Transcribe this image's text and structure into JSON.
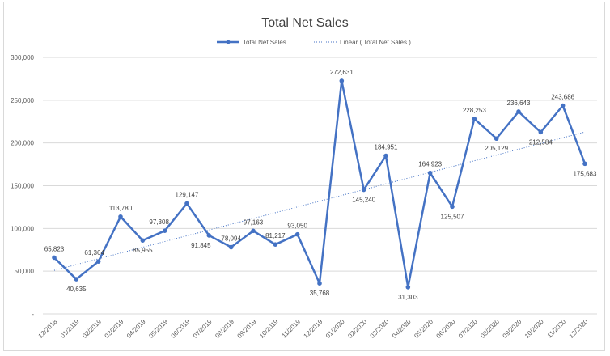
{
  "chart_data": {
    "type": "line",
    "title": "Total Net Sales",
    "xlabel": "",
    "ylabel": "",
    "categories": [
      "12/2018",
      "01/2019",
      "02/2019",
      "03/2019",
      "04/2019",
      "05/2019",
      "06/2019",
      "07/2019",
      "08/2019",
      "09/2019",
      "10/2019",
      "11/2019",
      "12/2019",
      "01/2020",
      "02/2020",
      "03/2020",
      "04/2020",
      "05/2020",
      "06/2020",
      "07/2020",
      "08/2020",
      "09/2020",
      "10/2020",
      "11/2020",
      "12/2020"
    ],
    "series": [
      {
        "name": "Total Net Sales",
        "color": "#4472c4",
        "values": [
          65823,
          40635,
          61364,
          113780,
          85955,
          97308,
          129147,
          91845,
          78094,
          97163,
          81217,
          93050,
          35768,
          272631,
          145240,
          184951,
          31303,
          164923,
          125507,
          228253,
          205129,
          236643,
          212584,
          243686,
          175683
        ],
        "data_labels": [
          "65,823",
          "40,635",
          "61,364",
          "113,780",
          "85,955",
          "97,308",
          "129,147",
          "91,845",
          "78,094",
          "97,163",
          "81,217",
          "93,050",
          "35,768",
          "272,631",
          "145,240",
          "184,951",
          "31,303",
          "164,923",
          "125,507",
          "228,253",
          "205,129",
          "236,643",
          "212,584",
          "243,686",
          "175,683"
        ]
      }
    ],
    "trendline": {
      "name": "Linear ( Total Net Sales )",
      "type": "linear",
      "style": "dotted",
      "color": "#4472c4"
    },
    "ylim": [
      0,
      300000
    ],
    "yticks": [
      0,
      50000,
      100000,
      150000,
      200000,
      250000,
      300000
    ],
    "ytick_labels": [
      "-",
      "50,000",
      "100,000",
      "150,000",
      "200,000",
      "250,000",
      "300,000"
    ],
    "grid": true,
    "legend": "top"
  }
}
